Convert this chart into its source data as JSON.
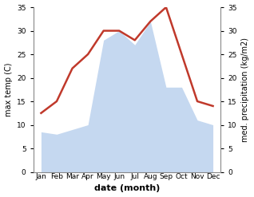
{
  "months": [
    "Jan",
    "Feb",
    "Mar",
    "Apr",
    "May",
    "Jun",
    "Jul",
    "Aug",
    "Sep",
    "Oct",
    "Nov",
    "Dec"
  ],
  "temperature": [
    12.5,
    15.0,
    22.0,
    25.0,
    30.0,
    30.0,
    28.0,
    32.0,
    35.0,
    25.0,
    15.0,
    14.0
  ],
  "precipitation": [
    8.5,
    8.0,
    9.0,
    10.0,
    28.0,
    30.0,
    27.0,
    32.0,
    18.0,
    18.0,
    11.0,
    10.0
  ],
  "temp_color": "#c0392b",
  "precip_color": "#c5d8f0",
  "ylim": [
    0,
    35
  ],
  "yticks": [
    0,
    5,
    10,
    15,
    20,
    25,
    30,
    35
  ],
  "xlabel": "date (month)",
  "ylabel_left": "max temp (C)",
  "ylabel_right": "med. precipitation (kg/m2)",
  "bg_color": "#ffffff",
  "label_fontsize": 7,
  "tick_fontsize": 6.5,
  "xlabel_fontsize": 8,
  "line_width": 1.8
}
